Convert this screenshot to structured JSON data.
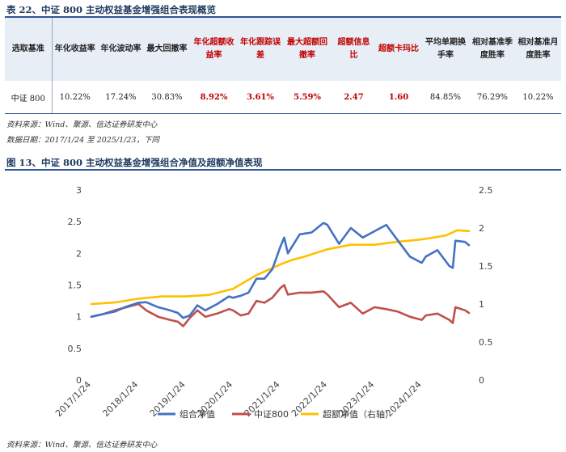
{
  "table_section": {
    "title": "表 22、中证 800 主动权益基金增强组合表现概览",
    "headers": [
      "选取基准",
      "年化收益率",
      "年化波动率",
      "最大回撤率",
      "年化超额收益率",
      "年化跟踪误差",
      "最大超额回撤率",
      "超额信息比",
      "超额卡玛比",
      "平均单期换手率",
      "相对基准季度胜率",
      "相对基准月度胜率"
    ],
    "highlight_columns": [
      4,
      5,
      6,
      7,
      8
    ],
    "row": [
      "中证 800",
      "10.22%",
      "17.24%",
      "30.83%",
      "8.92%",
      "3.61%",
      "5.59%",
      "2.47",
      "1.60",
      "84.85%",
      "76.29%",
      "10.22%"
    ],
    "source": "资料来源：Wind、聚源、信达证券研发中心",
    "date_note": "数据日期：2017/1/24 至 2025/1/23，下同"
  },
  "chart_section": {
    "title": "图 13、中证 800 主动权益基金增强组合净值及超额净值表现",
    "source": "资料来源：Wind、聚源、信达证券研发中心"
  },
  "colors": {
    "portfolio": "#4472c4",
    "benchmark": "#c0504d",
    "excess": "#ffc000",
    "header_bg": "#e8eef6",
    "accent_red": "#c00000",
    "title_blue": "#1f3a60"
  },
  "chart_data": {
    "type": "line",
    "x_ticks": [
      "2017/1/24",
      "2018/1/24",
      "2019/1/24",
      "2020/1/24",
      "2021/1/24",
      "2022/1/24",
      "2023/1/24",
      "2024/1/24"
    ],
    "y_left": {
      "min": 0,
      "max": 3,
      "ticks": [
        "0",
        "0.5",
        "1",
        "1.5",
        "2",
        "2.5",
        "3"
      ]
    },
    "y_right": {
      "min": 0,
      "max": 2.5,
      "ticks": [
        "0",
        "0.5",
        "1",
        "1.5",
        "2",
        "2.5"
      ]
    },
    "grid": false,
    "legend_position": "bottom",
    "series": [
      {
        "name": "组合净值",
        "axis": "left",
        "points": [
          [
            "2017-01-24",
            1.0
          ],
          [
            "2017-04-24",
            1.04
          ],
          [
            "2017-07-24",
            1.08
          ],
          [
            "2017-10-24",
            1.16
          ],
          [
            "2018-01-24",
            1.22
          ],
          [
            "2018-03-24",
            1.23
          ],
          [
            "2018-06-24",
            1.15
          ],
          [
            "2018-09-24",
            1.1
          ],
          [
            "2018-11-24",
            1.06
          ],
          [
            "2019-01-04",
            0.98
          ],
          [
            "2019-02-24",
            1.02
          ],
          [
            "2019-04-24",
            1.18
          ],
          [
            "2019-06-24",
            1.1
          ],
          [
            "2019-09-24",
            1.2
          ],
          [
            "2019-12-24",
            1.32
          ],
          [
            "2020-01-24",
            1.3
          ],
          [
            "2020-03-24",
            1.33
          ],
          [
            "2020-05-24",
            1.38
          ],
          [
            "2020-07-24",
            1.6
          ],
          [
            "2020-09-24",
            1.6
          ],
          [
            "2020-11-24",
            1.75
          ],
          [
            "2021-01-24",
            2.1
          ],
          [
            "2021-02-24",
            2.25
          ],
          [
            "2021-03-24",
            2.0
          ],
          [
            "2021-06-24",
            2.3
          ],
          [
            "2021-09-24",
            2.33
          ],
          [
            "2021-12-24",
            2.48
          ],
          [
            "2022-01-24",
            2.45
          ],
          [
            "2022-04-24",
            2.15
          ],
          [
            "2022-07-24",
            2.4
          ],
          [
            "2022-10-24",
            2.25
          ],
          [
            "2023-01-24",
            2.35
          ],
          [
            "2023-04-24",
            2.45
          ],
          [
            "2023-07-24",
            2.2
          ],
          [
            "2023-10-24",
            1.95
          ],
          [
            "2024-01-24",
            1.85
          ],
          [
            "2024-02-24",
            1.95
          ],
          [
            "2024-05-24",
            2.05
          ],
          [
            "2024-08-24",
            1.8
          ],
          [
            "2024-09-20",
            1.77
          ],
          [
            "2024-10-10",
            2.2
          ],
          [
            "2024-12-24",
            2.18
          ],
          [
            "2025-01-23",
            2.13
          ]
        ]
      },
      {
        "name": "中证800",
        "axis": "left",
        "points": [
          [
            "2017-01-24",
            1.0
          ],
          [
            "2017-04-24",
            1.04
          ],
          [
            "2017-07-24",
            1.1
          ],
          [
            "2017-10-24",
            1.15
          ],
          [
            "2018-01-24",
            1.2
          ],
          [
            "2018-03-24",
            1.1
          ],
          [
            "2018-06-24",
            1.0
          ],
          [
            "2018-09-24",
            0.95
          ],
          [
            "2018-11-24",
            0.92
          ],
          [
            "2019-01-04",
            0.85
          ],
          [
            "2019-02-24",
            0.98
          ],
          [
            "2019-04-24",
            1.1
          ],
          [
            "2019-06-24",
            1.0
          ],
          [
            "2019-09-24",
            1.05
          ],
          [
            "2019-12-24",
            1.12
          ],
          [
            "2020-01-24",
            1.1
          ],
          [
            "2020-03-24",
            1.02
          ],
          [
            "2020-05-24",
            1.05
          ],
          [
            "2020-07-24",
            1.25
          ],
          [
            "2020-09-24",
            1.22
          ],
          [
            "2020-11-24",
            1.3
          ],
          [
            "2021-01-24",
            1.45
          ],
          [
            "2021-02-24",
            1.5
          ],
          [
            "2021-03-24",
            1.35
          ],
          [
            "2021-06-24",
            1.38
          ],
          [
            "2021-09-24",
            1.38
          ],
          [
            "2021-12-24",
            1.4
          ],
          [
            "2022-01-24",
            1.35
          ],
          [
            "2022-04-24",
            1.15
          ],
          [
            "2022-07-24",
            1.22
          ],
          [
            "2022-10-24",
            1.05
          ],
          [
            "2023-01-24",
            1.15
          ],
          [
            "2023-04-24",
            1.12
          ],
          [
            "2023-07-24",
            1.08
          ],
          [
            "2023-10-24",
            1.0
          ],
          [
            "2024-01-24",
            0.95
          ],
          [
            "2024-02-24",
            1.02
          ],
          [
            "2024-05-24",
            1.05
          ],
          [
            "2024-08-24",
            0.95
          ],
          [
            "2024-09-20",
            0.9
          ],
          [
            "2024-10-10",
            1.15
          ],
          [
            "2024-12-24",
            1.1
          ],
          [
            "2025-01-23",
            1.06
          ]
        ]
      },
      {
        "name": "超额净值（右轴）",
        "axis": "right",
        "points": [
          [
            "2017-01-24",
            1.0
          ],
          [
            "2017-07-24",
            1.02
          ],
          [
            "2018-01-24",
            1.07
          ],
          [
            "2018-07-24",
            1.1
          ],
          [
            "2019-01-24",
            1.1
          ],
          [
            "2019-07-24",
            1.12
          ],
          [
            "2020-01-24",
            1.2
          ],
          [
            "2020-07-24",
            1.38
          ],
          [
            "2021-01-24",
            1.52
          ],
          [
            "2021-04-24",
            1.58
          ],
          [
            "2021-07-24",
            1.62
          ],
          [
            "2022-01-24",
            1.72
          ],
          [
            "2022-07-24",
            1.78
          ],
          [
            "2023-01-24",
            1.78
          ],
          [
            "2023-07-24",
            1.82
          ],
          [
            "2024-01-24",
            1.85
          ],
          [
            "2024-07-24",
            1.9
          ],
          [
            "2024-10-24",
            1.97
          ],
          [
            "2025-01-23",
            1.96
          ]
        ]
      }
    ]
  }
}
